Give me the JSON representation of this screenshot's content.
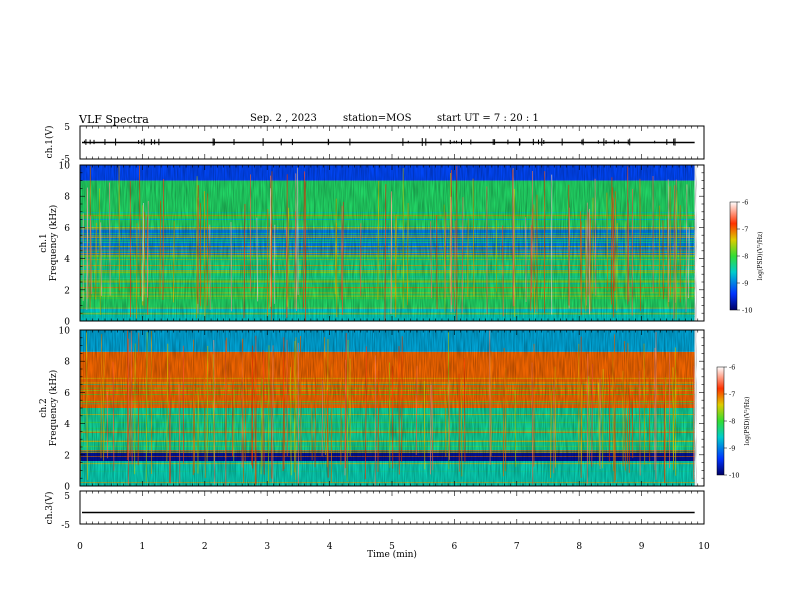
{
  "header": {
    "title": "VLF Spectra",
    "date": "Sep. 2 , 2023",
    "station": "station=MOS",
    "start": "start UT =  7 : 20 : 1"
  },
  "chart_data": {
    "type": "heatmap",
    "x_axis": {
      "label": "Time (min)",
      "range": [
        0,
        10
      ],
      "ticks": [
        "0",
        "1",
        "2",
        "3",
        "4",
        "5",
        "6",
        "7",
        "8",
        "9",
        "10"
      ],
      "data_end_min": 9.85
    },
    "panels": [
      {
        "id": "ch1_waveform",
        "ylabel": "ch.1(V)",
        "yrange": [
          -5,
          5
        ],
        "ytick_labels": [
          "5",
          "-5"
        ],
        "baseline_v": 0
      },
      {
        "id": "ch1_spectrogram",
        "ylabel_line1": "ch.1",
        "ylabel_line2": "Frequency (kHz)",
        "yrange_khz": [
          0,
          10
        ],
        "ytick_labels": [
          "0",
          "2",
          "4",
          "6",
          "8",
          "10"
        ],
        "band_khz": [
          {
            "lo": 0.0,
            "hi": 0.8,
            "level": "-8.6"
          },
          {
            "lo": 0.8,
            "hi": 2.7,
            "level": "-8.2"
          },
          {
            "lo": 2.7,
            "hi": 4.2,
            "level": "-8.3"
          },
          {
            "lo": 4.2,
            "hi": 6.0,
            "level": "-9.0"
          },
          {
            "lo": 6.0,
            "hi": 9.0,
            "level": "-8.2"
          },
          {
            "lo": 9.0,
            "hi": 10.0,
            "level": "-9.3"
          }
        ],
        "colorbar": {
          "label": "log(PSD)(V²/Hz)",
          "ticks": [
            "-6",
            "-7",
            "-8",
            "-9",
            "-10"
          ]
        }
      },
      {
        "id": "ch2_spectrogram",
        "ylabel_line1": "ch.2",
        "ylabel_line2": "Frequency (kHz)",
        "yrange_khz": [
          0,
          10
        ],
        "ytick_labels": [
          "0",
          "2",
          "4",
          "6",
          "8",
          "10"
        ],
        "band_khz": [
          {
            "lo": 0.0,
            "hi": 1.6,
            "level": "-8.5"
          },
          {
            "lo": 1.6,
            "hi": 2.3,
            "level": "-9.8"
          },
          {
            "lo": 2.3,
            "hi": 5.0,
            "level": "-8.4"
          },
          {
            "lo": 5.0,
            "hi": 8.6,
            "level": "-7.0"
          },
          {
            "lo": 8.6,
            "hi": 10.0,
            "level": "-8.8"
          }
        ],
        "colorbar": {
          "label": "log(PSD)(V²/Hz)",
          "ticks": [
            "-6",
            "-7",
            "-8",
            "-9",
            "-10"
          ]
        }
      },
      {
        "id": "ch3_waveform",
        "ylabel": "ch.3(V)",
        "yrange": [
          -5,
          5
        ],
        "ytick_labels": [
          "5",
          "-5"
        ],
        "baseline_v": -1.5
      }
    ],
    "colors": {
      "very_low": "#000066",
      "low": "#0033ff",
      "mid_low": "#00cccc",
      "mid": "#33dd33",
      "mid_high": "#ddcc00",
      "high": "#ff3300",
      "very_high": "#ffffff"
    }
  }
}
